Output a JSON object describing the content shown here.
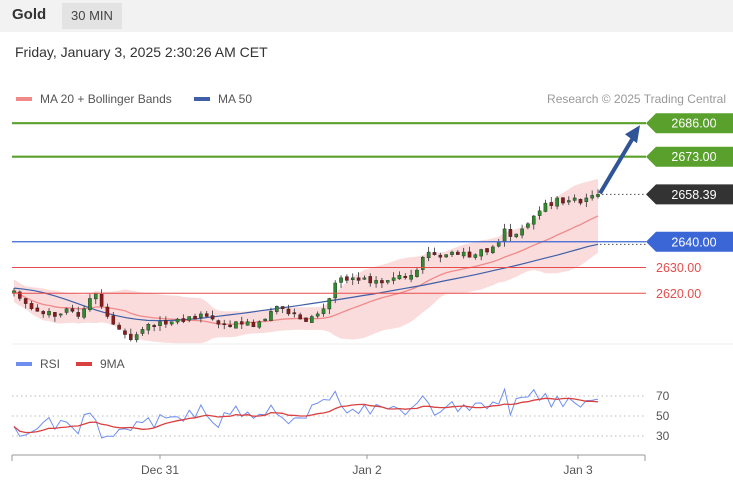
{
  "header": {
    "title": "Gold",
    "interval": "30 MIN",
    "datetime": "Friday, January 3, 2025 2:30:26 AM CET"
  },
  "colors": {
    "bull": "#2e8b2e",
    "bear": "#8b1a1a",
    "ma20": "#f08a8a",
    "bands_fill": "#f9d6d6",
    "ma50": "#3f5fa8",
    "target": "#5aa02c",
    "pivot": "#3a66d6",
    "support": "#e74c4c",
    "current": "#333333",
    "arrow": "#2f5597",
    "rsi": "#6f8ff0",
    "ma9": "#d94040"
  },
  "chart_data": [
    {
      "type": "candlestick",
      "instrument": "Gold",
      "timeframe": "30 MIN",
      "x_ticks": [
        "Dec 31",
        "Jan 2",
        "Jan 3"
      ],
      "ylim": [
        2598,
        2695
      ],
      "legend": [
        "MA 20 + Bollinger Bands",
        "MA 50"
      ],
      "watermark": "Research © 2025 Trading Central",
      "levels": [
        {
          "value": 2686.0,
          "label": "2686.00",
          "kind": "target"
        },
        {
          "value": 2673.0,
          "label": "2673.00",
          "kind": "target"
        },
        {
          "value": 2658.39,
          "label": "2658.39",
          "kind": "current"
        },
        {
          "value": 2640.0,
          "label": "2640.00",
          "kind": "pivot"
        },
        {
          "value": 2630.0,
          "label": "2630.00",
          "kind": "support"
        },
        {
          "value": 2620.0,
          "label": "2620.00",
          "kind": "support"
        }
      ],
      "close": [
        2621.0,
        2618.0,
        2616.0,
        2614.0,
        2613.0,
        2612.0,
        2613.0,
        2611.0,
        2612.0,
        2614.0,
        2613.0,
        2611.0,
        2614.0,
        2618.0,
        2620.0,
        2615.0,
        2611.0,
        2608.0,
        2606.0,
        2604.0,
        2602.0,
        2604.0,
        2606.0,
        2608.0,
        2607.0,
        2609.0,
        2608.0,
        2609.0,
        2610.0,
        2609.0,
        2611.0,
        2610.0,
        2612.0,
        2611.0,
        2610.0,
        2608.0,
        2608.0,
        2607.0,
        2609.0,
        2608.0,
        2609.0,
        2607.0,
        2609.0,
        2610.0,
        2613.0,
        2615.0,
        2614.0,
        2612.0,
        2612.0,
        2610.0,
        2609.0,
        2611.0,
        2612.0,
        2614.0,
        2618.0,
        2624.0,
        2626.0,
        2625.0,
        2626.0,
        2625.0,
        2626.0,
        2624.0,
        2625.0,
        2624.0,
        2625.0,
        2626.0,
        2627.0,
        2626.0,
        2627.0,
        2629.0,
        2634.0,
        2636.0,
        2635.0,
        2634.0,
        2635.0,
        2636.0,
        2635.0,
        2636.0,
        2634.0,
        2635.0,
        2637.0,
        2636.0,
        2638.0,
        2640.0,
        2645.0,
        2642.0,
        2643.0,
        2645.0,
        2647.0,
        2650.0,
        2652.0,
        2655.0,
        2654.0,
        2657.0,
        2655.0,
        2656.0,
        2657.0,
        2655.0,
        2657.0,
        2658.0,
        2658.4
      ],
      "ma50": [
        2622.0,
        2621.6,
        2621.0,
        2620.1,
        2619.0,
        2617.7,
        2616.3,
        2614.9,
        2613.5,
        2612.3,
        2611.3,
        2610.5,
        2609.9,
        2609.5,
        2609.4,
        2609.4,
        2609.6,
        2609.9,
        2610.2,
        2610.7,
        2611.1,
        2611.6,
        2612.1,
        2612.6,
        2613.2,
        2613.7,
        2614.3,
        2614.8,
        2615.4,
        2616.0,
        2616.6,
        2617.2,
        2617.8,
        2618.4,
        2619.1,
        2619.7,
        2620.4,
        2621.1,
        2621.8,
        2622.5,
        2623.2,
        2624.0,
        2624.8,
        2625.6,
        2626.4,
        2627.2,
        2628.1,
        2629.0,
        2629.9,
        2630.8,
        2631.8,
        2632.8,
        2633.8,
        2634.8,
        2635.9,
        2637.0,
        2638.1,
        2639.0
      ],
      "rsi_panel": {
        "legend": [
          "RSI",
          "9MA"
        ],
        "y_ticks": [
          "70",
          "50",
          "30"
        ],
        "ylim": [
          20,
          82
        ]
      }
    }
  ]
}
